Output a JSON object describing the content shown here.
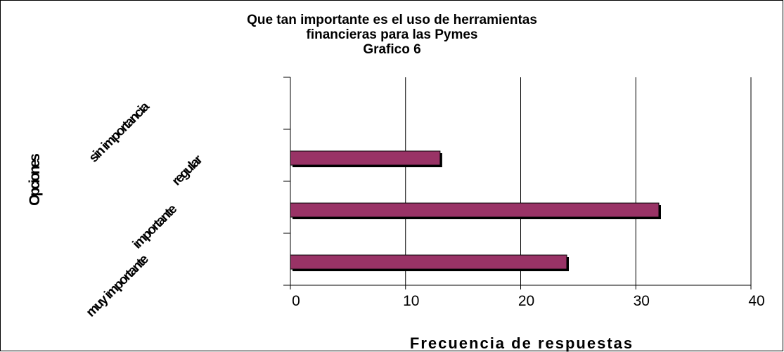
{
  "chart_data": {
    "type": "bar",
    "orientation": "horizontal",
    "title_lines": [
      "Que tan importante es el uso de herramientas",
      "financieras para las Pymes",
      "Grafico 6"
    ],
    "categories": [
      "muy importante",
      "importante",
      "regular",
      "sin importancia"
    ],
    "values": [
      24,
      32,
      13,
      0
    ],
    "xlabel": "Frecuencia de respuestas",
    "ylabel": "Opciones",
    "xlim": [
      0,
      40
    ],
    "xticks": [
      0,
      10,
      20,
      30,
      40
    ],
    "bar_color": "#993366",
    "grid": true,
    "legend": "none"
  }
}
